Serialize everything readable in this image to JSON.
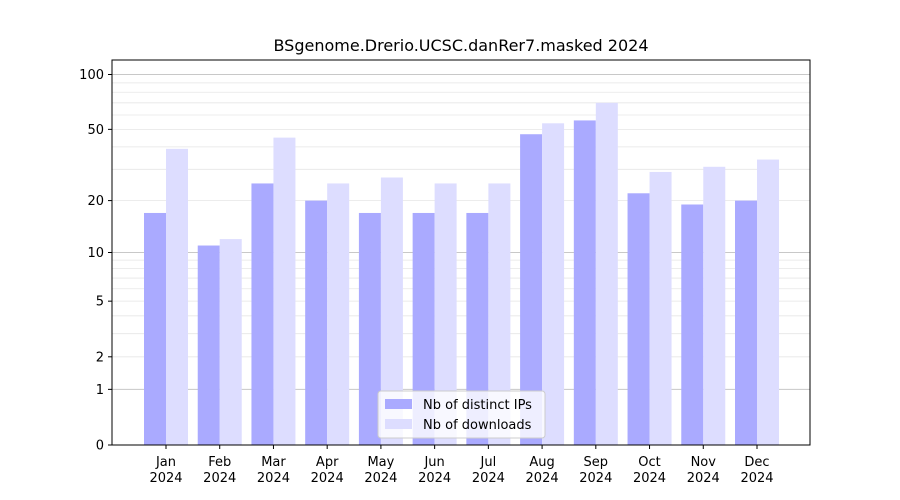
{
  "chart_data": {
    "type": "bar",
    "title": "BSgenome.Drerio.UCSC.danRer7.masked 2024",
    "xlabel": "",
    "ylabel": "",
    "yscale": "log1p",
    "ylim": [
      0,
      120
    ],
    "yticks": [
      0,
      1,
      2,
      5,
      10,
      20,
      50,
      100
    ],
    "categories": [
      {
        "month": "Jan",
        "year": "2024"
      },
      {
        "month": "Feb",
        "year": "2024"
      },
      {
        "month": "Mar",
        "year": "2024"
      },
      {
        "month": "Apr",
        "year": "2024"
      },
      {
        "month": "May",
        "year": "2024"
      },
      {
        "month": "Jun",
        "year": "2024"
      },
      {
        "month": "Jul",
        "year": "2024"
      },
      {
        "month": "Aug",
        "year": "2024"
      },
      {
        "month": "Sep",
        "year": "2024"
      },
      {
        "month": "Oct",
        "year": "2024"
      },
      {
        "month": "Nov",
        "year": "2024"
      },
      {
        "month": "Dec",
        "year": "2024"
      }
    ],
    "series": [
      {
        "name": "Nb of distinct IPs",
        "color": "#aaaaff",
        "values": [
          17,
          11,
          25,
          20,
          17,
          17,
          17,
          47,
          56,
          22,
          19,
          20
        ]
      },
      {
        "name": "Nb of downloads",
        "color": "#ddddff",
        "values": [
          39,
          12,
          45,
          25,
          27,
          25,
          25,
          54,
          70,
          29,
          31,
          34
        ]
      }
    ],
    "grid": true,
    "legend_position": "bottom-center"
  }
}
